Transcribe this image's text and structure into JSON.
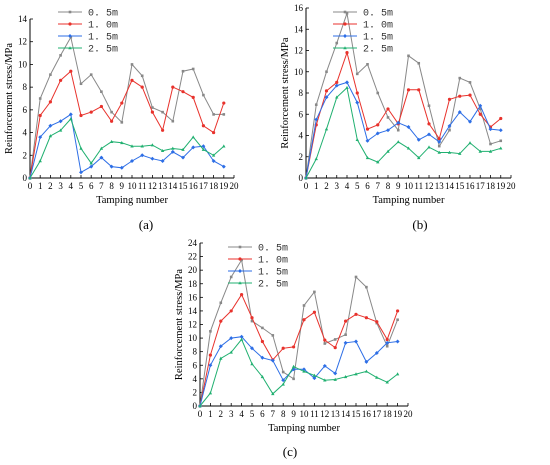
{
  "figure": {
    "panel_labels": [
      "(a)",
      "(b)",
      "(c)"
    ]
  },
  "chart_data": [
    {
      "type": "line",
      "label": "(a)",
      "xlabel": "Tamping number",
      "ylabel": "Reinforcement stress/MPa",
      "xlim": [
        0,
        20
      ],
      "ylim": [
        0,
        14
      ],
      "xticks": [
        0,
        1,
        2,
        3,
        4,
        5,
        6,
        7,
        8,
        9,
        10,
        11,
        12,
        13,
        14,
        15,
        16,
        17,
        18,
        19,
        20
      ],
      "yticks": [
        0,
        2,
        4,
        6,
        8,
        10,
        12,
        14
      ],
      "grid": false,
      "legend_position": "top-left",
      "x": [
        0,
        1,
        2,
        3,
        4,
        5,
        6,
        7,
        8,
        9,
        10,
        11,
        12,
        13,
        14,
        15,
        16,
        17,
        18,
        19
      ],
      "series": [
        {
          "name": "0.5m",
          "color": "#888888",
          "values": [
            0,
            7.0,
            9.1,
            10.8,
            12.4,
            8.3,
            9.1,
            7.6,
            5.8,
            4.9,
            10.0,
            9.0,
            6.2,
            5.8,
            5.0,
            9.4,
            9.6,
            7.3,
            5.6,
            5.6
          ]
        },
        {
          "name": "1.0m",
          "color": "#e8322c",
          "values": [
            0,
            5.5,
            6.7,
            8.6,
            9.4,
            5.5,
            5.8,
            6.3,
            5.0,
            6.6,
            8.6,
            8.0,
            5.8,
            4.2,
            8.0,
            7.6,
            7.1,
            4.6,
            4.0,
            6.6
          ]
        },
        {
          "name": "1.5m",
          "color": "#2d6ee6",
          "values": [
            0,
            3.6,
            4.6,
            5.0,
            5.6,
            0.5,
            1.0,
            1.8,
            1.0,
            0.9,
            1.5,
            2.0,
            1.7,
            1.5,
            2.3,
            1.8,
            2.7,
            2.8,
            1.5,
            1.0
          ]
        },
        {
          "name": "2.5m",
          "color": "#20b070",
          "values": [
            0,
            1.5,
            3.7,
            4.2,
            5.2,
            2.6,
            1.3,
            2.6,
            3.2,
            3.1,
            2.8,
            2.8,
            2.9,
            2.4,
            2.6,
            2.5,
            3.6,
            2.5,
            2.0,
            2.8
          ]
        }
      ]
    },
    {
      "type": "line",
      "label": "(b)",
      "xlabel": "Tamping number",
      "ylabel": "Reinforcement stress/MPa",
      "xlim": [
        0,
        20
      ],
      "ylim": [
        0,
        16
      ],
      "xticks": [
        0,
        1,
        2,
        3,
        4,
        5,
        6,
        7,
        8,
        9,
        10,
        11,
        12,
        13,
        14,
        15,
        16,
        17,
        18,
        19,
        20
      ],
      "yticks": [
        0,
        2,
        4,
        6,
        8,
        10,
        12,
        14,
        16
      ],
      "grid": false,
      "legend_position": "top-left",
      "x": [
        0,
        1,
        2,
        3,
        4,
        5,
        6,
        7,
        8,
        9,
        10,
        11,
        12,
        13,
        14,
        15,
        16,
        17,
        18,
        19
      ],
      "series": [
        {
          "name": "0.5m",
          "color": "#888888",
          "values": [
            0,
            6.9,
            10.0,
            12.7,
            15.5,
            9.8,
            10.7,
            8.0,
            5.7,
            4.5,
            11.5,
            10.8,
            6.8,
            3.0,
            4.5,
            9.4,
            9.0,
            6.5,
            3.2,
            3.5
          ]
        },
        {
          "name": "1.0m",
          "color": "#e8322c",
          "values": [
            0,
            5.0,
            8.2,
            9.0,
            11.8,
            8.0,
            4.6,
            5.0,
            6.5,
            5.1,
            8.3,
            8.3,
            5.1,
            3.7,
            7.4,
            7.7,
            7.8,
            6.0,
            4.8,
            5.6
          ]
        },
        {
          "name": "1.5m",
          "color": "#2d6ee6",
          "values": [
            0,
            5.5,
            7.6,
            8.7,
            9.0,
            7.1,
            3.5,
            4.2,
            4.5,
            5.2,
            4.8,
            3.6,
            4.1,
            3.4,
            4.9,
            6.2,
            5.3,
            6.8,
            4.6,
            4.5
          ]
        },
        {
          "name": "2.5m",
          "color": "#20b070",
          "values": [
            0,
            1.8,
            4.6,
            7.6,
            8.5,
            3.6,
            1.9,
            1.5,
            2.5,
            3.4,
            2.8,
            1.9,
            2.9,
            2.4,
            2.4,
            2.3,
            3.3,
            2.5,
            2.5,
            2.8
          ]
        }
      ]
    },
    {
      "type": "line",
      "label": "(c)",
      "xlabel": "Tamping number",
      "ylabel": "Reinforcement stress/MPa",
      "xlim": [
        0,
        20
      ],
      "ylim": [
        0,
        24
      ],
      "xticks": [
        0,
        1,
        2,
        3,
        4,
        5,
        6,
        7,
        8,
        9,
        10,
        11,
        12,
        13,
        14,
        15,
        16,
        17,
        18,
        19,
        20
      ],
      "yticks": [
        0,
        2,
        4,
        6,
        8,
        10,
        12,
        14,
        16,
        18,
        20,
        22,
        24
      ],
      "grid": false,
      "legend_position": "top-right",
      "x": [
        0,
        1,
        2,
        3,
        4,
        5,
        6,
        7,
        8,
        9,
        10,
        11,
        12,
        13,
        14,
        15,
        16,
        17,
        18,
        19
      ],
      "series": [
        {
          "name": "0.5m",
          "color": "#888888",
          "values": [
            0,
            11.0,
            15.2,
            19.0,
            21.5,
            12.5,
            11.5,
            10.4,
            5.0,
            4.0,
            14.8,
            16.8,
            9.2,
            9.8,
            10.5,
            19.0,
            17.5,
            12.2,
            8.8,
            12.7
          ]
        },
        {
          "name": "1.0m",
          "color": "#e8322c",
          "values": [
            0,
            7.5,
            12.5,
            14.0,
            16.4,
            13.0,
            9.5,
            6.8,
            8.5,
            8.7,
            12.7,
            13.8,
            9.7,
            8.6,
            12.5,
            13.5,
            13.0,
            12.4,
            9.8,
            14.0
          ]
        },
        {
          "name": "1.5m",
          "color": "#2d6ee6",
          "values": [
            0,
            6.0,
            8.8,
            10.0,
            10.2,
            8.5,
            7.1,
            6.7,
            3.8,
            5.4,
            5.4,
            4.1,
            5.9,
            4.8,
            9.3,
            9.5,
            6.5,
            7.8,
            9.3,
            9.5
          ]
        },
        {
          "name": "2.5m",
          "color": "#20b070",
          "values": [
            0,
            1.9,
            7.0,
            7.9,
            9.8,
            6.2,
            4.3,
            1.8,
            3.2,
            5.8,
            5.1,
            4.5,
            3.8,
            3.9,
            4.3,
            4.7,
            5.1,
            4.2,
            3.5,
            4.7
          ]
        }
      ]
    }
  ]
}
